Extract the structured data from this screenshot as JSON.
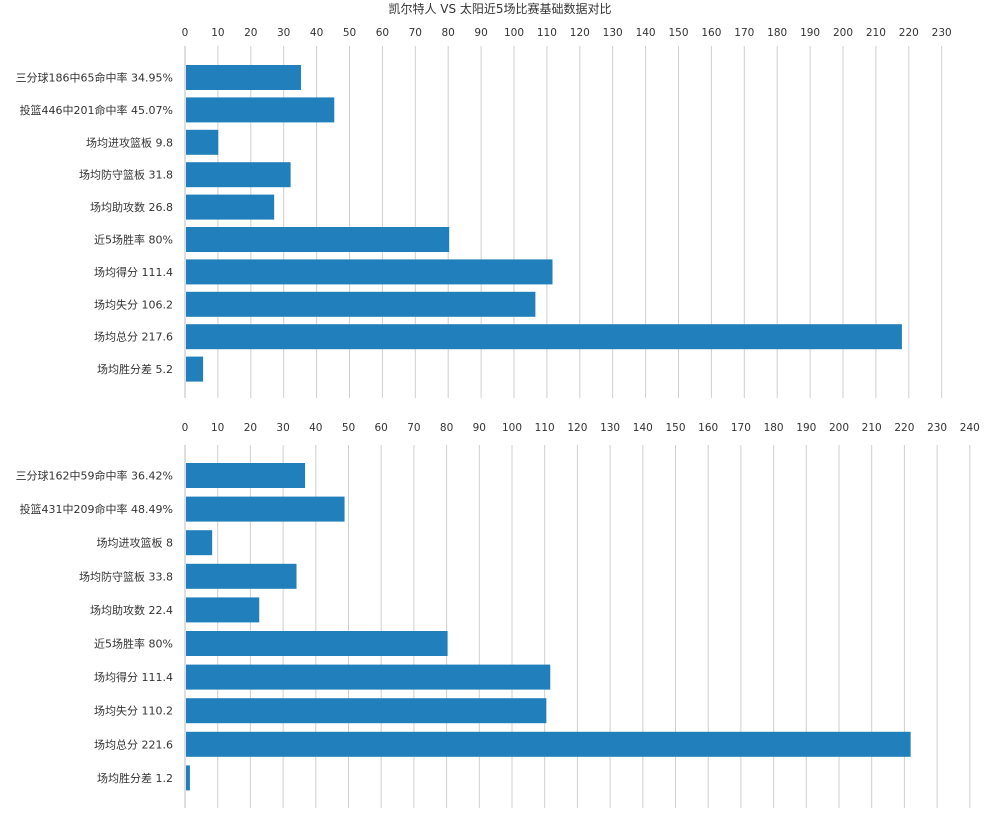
{
  "title": "凯尔特人 VS 太阳近5场比赛基础数据对比",
  "colors": {
    "bar": "#2180bb",
    "grid": "#cfcfcf",
    "text": "#333333"
  },
  "chart_data": [
    {
      "type": "bar",
      "orientation": "horizontal",
      "title": "凯尔特人 VS 太阳近5场比赛基础数据对比",
      "xlim": [
        0,
        230
      ],
      "x_ticks": [
        "0",
        "10",
        "20",
        "30",
        "40",
        "50",
        "60",
        "70",
        "80",
        "90",
        "100",
        "110",
        "120",
        "130",
        "140",
        "150",
        "160",
        "170",
        "180",
        "190",
        "200",
        "210",
        "220",
        "230"
      ],
      "categories": [
        "三分球186中65命中率 34.95%",
        "投篮446中201命中率 45.07%",
        "场均进攻篮板 9.8",
        "场均防守篮板 31.8",
        "场均助攻数 26.8",
        "近5场胜率 80%",
        "场均得分 111.4",
        "场均失分 106.2",
        "场均总分 217.6",
        "场均胜分差 5.2"
      ],
      "values": [
        34.95,
        45.07,
        9.8,
        31.8,
        26.8,
        80,
        111.4,
        106.2,
        217.6,
        5.2
      ],
      "grid": true
    },
    {
      "type": "bar",
      "orientation": "horizontal",
      "title": "",
      "xlim": [
        0,
        240
      ],
      "x_ticks": [
        "0",
        "10",
        "20",
        "30",
        "40",
        "50",
        "60",
        "70",
        "80",
        "90",
        "100",
        "110",
        "120",
        "130",
        "140",
        "150",
        "160",
        "170",
        "180",
        "190",
        "200",
        "210",
        "220",
        "230",
        "240"
      ],
      "categories": [
        "三分球162中59命中率 36.42%",
        "投篮431中209命中率 48.49%",
        "场均进攻篮板 8",
        "场均防守篮板 33.8",
        "场均助攻数 22.4",
        "近5场胜率 80%",
        "场均得分 111.4",
        "场均失分 110.2",
        "场均总分 221.6",
        "场均胜分差 1.2"
      ],
      "values": [
        36.42,
        48.49,
        8,
        33.8,
        22.4,
        80,
        111.4,
        110.2,
        221.6,
        1.2
      ],
      "grid": true
    }
  ]
}
